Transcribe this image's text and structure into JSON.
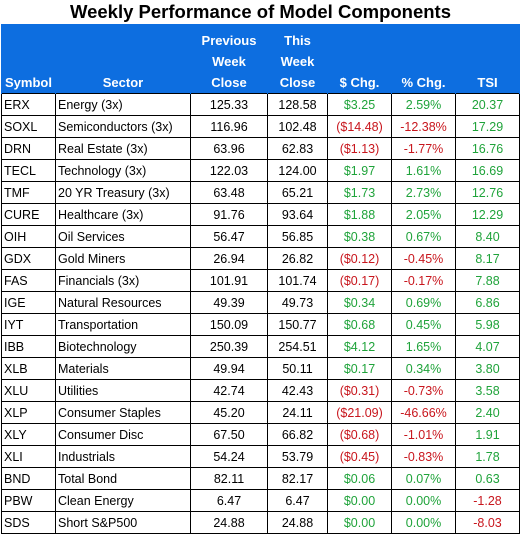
{
  "title": "Weekly Performance of Model Components",
  "headers": {
    "symbol": "Symbol",
    "sector": "Sector",
    "prev_line1": "Previous",
    "prev_line2": "Week",
    "prev_line3": "Close",
    "this_line1": "This",
    "this_line2": "Week",
    "this_line3": "Close",
    "chg": "$ Chg.",
    "pct": "% Chg.",
    "tsi": "TSI"
  },
  "colors": {
    "header_bg": "#0d6ee0",
    "positive": "#1fa33a",
    "negative": "#c8161d"
  },
  "rows": [
    {
      "symbol": "ERX",
      "sector": "Energy (3x)",
      "prev": "125.33",
      "this": "128.58",
      "chg": "$3.25",
      "pct": "2.59%",
      "tsi": "20.37",
      "chg_sign": "pos",
      "pct_sign": "pos",
      "tsi_sign": "pos"
    },
    {
      "symbol": "SOXL",
      "sector": "Semiconductors (3x)",
      "prev": "116.96",
      "this": "102.48",
      "chg": "($14.48)",
      "pct": "-12.38%",
      "tsi": "17.29",
      "chg_sign": "neg",
      "pct_sign": "neg",
      "tsi_sign": "pos"
    },
    {
      "symbol": "DRN",
      "sector": "Real Estate (3x)",
      "prev": "63.96",
      "this": "62.83",
      "chg": "($1.13)",
      "pct": "-1.77%",
      "tsi": "16.76",
      "chg_sign": "neg",
      "pct_sign": "neg",
      "tsi_sign": "pos"
    },
    {
      "symbol": "TECL",
      "sector": "Technology (3x)",
      "prev": "122.03",
      "this": "124.00",
      "chg": "$1.97",
      "pct": "1.61%",
      "tsi": "16.69",
      "chg_sign": "pos",
      "pct_sign": "pos",
      "tsi_sign": "pos"
    },
    {
      "symbol": "TMF",
      "sector": "20 YR Treasury (3x)",
      "prev": "63.48",
      "this": "65.21",
      "chg": "$1.73",
      "pct": "2.73%",
      "tsi": "12.76",
      "chg_sign": "pos",
      "pct_sign": "pos",
      "tsi_sign": "pos"
    },
    {
      "symbol": "CURE",
      "sector": "Healthcare (3x)",
      "prev": "91.76",
      "this": "93.64",
      "chg": "$1.88",
      "pct": "2.05%",
      "tsi": "12.29",
      "chg_sign": "pos",
      "pct_sign": "pos",
      "tsi_sign": "pos"
    },
    {
      "symbol": "OIH",
      "sector": "Oil Services",
      "prev": "56.47",
      "this": "56.85",
      "chg": "$0.38",
      "pct": "0.67%",
      "tsi": "8.40",
      "chg_sign": "pos",
      "pct_sign": "pos",
      "tsi_sign": "pos"
    },
    {
      "symbol": "GDX",
      "sector": "Gold Miners",
      "prev": "26.94",
      "this": "26.82",
      "chg": "($0.12)",
      "pct": "-0.45%",
      "tsi": "8.17",
      "chg_sign": "neg",
      "pct_sign": "neg",
      "tsi_sign": "pos"
    },
    {
      "symbol": "FAS",
      "sector": "Financials (3x)",
      "prev": "101.91",
      "this": "101.74",
      "chg": "($0.17)",
      "pct": "-0.17%",
      "tsi": "7.88",
      "chg_sign": "neg",
      "pct_sign": "neg",
      "tsi_sign": "pos"
    },
    {
      "symbol": "IGE",
      "sector": "Natural Resources",
      "prev": "49.39",
      "this": "49.73",
      "chg": "$0.34",
      "pct": "0.69%",
      "tsi": "6.86",
      "chg_sign": "pos",
      "pct_sign": "pos",
      "tsi_sign": "pos"
    },
    {
      "symbol": "IYT",
      "sector": "Transportation",
      "prev": "150.09",
      "this": "150.77",
      "chg": "$0.68",
      "pct": "0.45%",
      "tsi": "5.98",
      "chg_sign": "pos",
      "pct_sign": "pos",
      "tsi_sign": "pos"
    },
    {
      "symbol": "IBB",
      "sector": "Biotechnology",
      "prev": "250.39",
      "this": "254.51",
      "chg": "$4.12",
      "pct": "1.65%",
      "tsi": "4.07",
      "chg_sign": "pos",
      "pct_sign": "pos",
      "tsi_sign": "pos"
    },
    {
      "symbol": "XLB",
      "sector": "Materials",
      "prev": "49.94",
      "this": "50.11",
      "chg": "$0.17",
      "pct": "0.34%",
      "tsi": "3.80",
      "chg_sign": "pos",
      "pct_sign": "pos",
      "tsi_sign": "pos"
    },
    {
      "symbol": "XLU",
      "sector": "Utilities",
      "prev": "42.74",
      "this": "42.43",
      "chg": "($0.31)",
      "pct": "-0.73%",
      "tsi": "3.58",
      "chg_sign": "neg",
      "pct_sign": "neg",
      "tsi_sign": "pos"
    },
    {
      "symbol": "XLP",
      "sector": "Consumer Staples",
      "prev": "45.20",
      "this": "24.11",
      "chg": "($21.09)",
      "pct": "-46.66%",
      "tsi": "2.40",
      "chg_sign": "neg",
      "pct_sign": "neg",
      "tsi_sign": "pos"
    },
    {
      "symbol": "XLY",
      "sector": "Consumer Disc",
      "prev": "67.50",
      "this": "66.82",
      "chg": "($0.68)",
      "pct": "-1.01%",
      "tsi": "1.91",
      "chg_sign": "neg",
      "pct_sign": "neg",
      "tsi_sign": "pos"
    },
    {
      "symbol": "XLI",
      "sector": "Industrials",
      "prev": "54.24",
      "this": "53.79",
      "chg": "($0.45)",
      "pct": "-0.83%",
      "tsi": "1.78",
      "chg_sign": "neg",
      "pct_sign": "neg",
      "tsi_sign": "pos"
    },
    {
      "symbol": "BND",
      "sector": "Total Bond",
      "prev": "82.11",
      "this": "82.17",
      "chg": "$0.06",
      "pct": "0.07%",
      "tsi": "0.63",
      "chg_sign": "pos",
      "pct_sign": "pos",
      "tsi_sign": "pos"
    },
    {
      "symbol": "PBW",
      "sector": "Clean Energy",
      "prev": "6.47",
      "this": "6.47",
      "chg": "$0.00",
      "pct": "0.00%",
      "tsi": "-1.28",
      "chg_sign": "pos",
      "pct_sign": "pos",
      "tsi_sign": "neg"
    },
    {
      "symbol": "SDS",
      "sector": "Short S&P500",
      "prev": "24.88",
      "this": "24.88",
      "chg": "$0.00",
      "pct": "0.00%",
      "tsi": "-8.03",
      "chg_sign": "pos",
      "pct_sign": "pos",
      "tsi_sign": "neg"
    }
  ]
}
